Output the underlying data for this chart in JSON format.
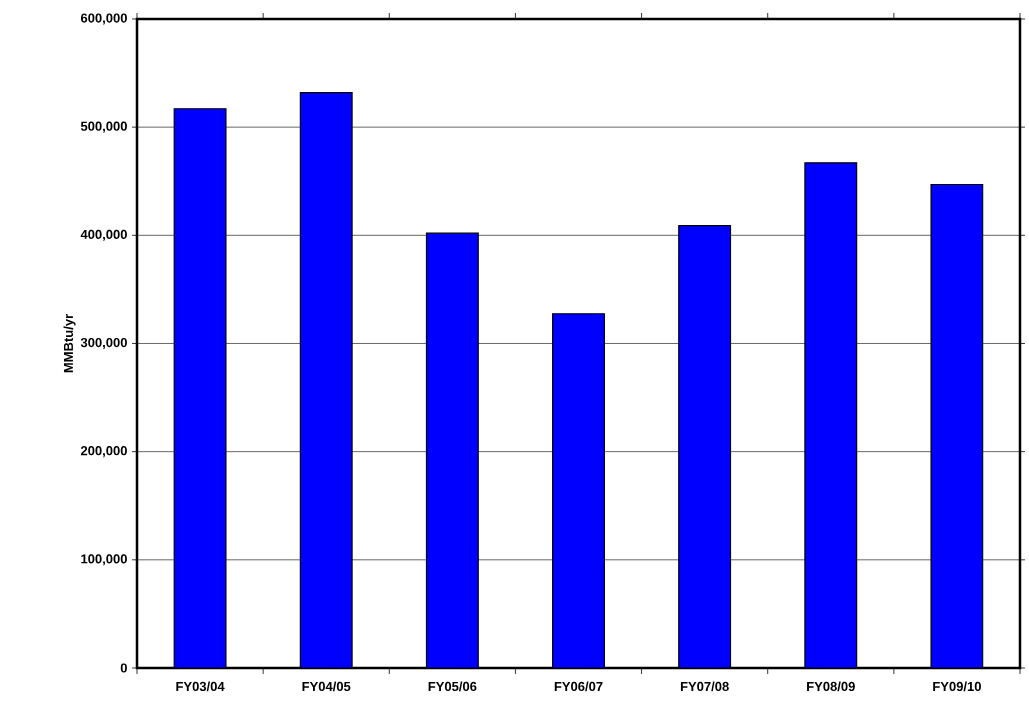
{
  "chart_data": {
    "type": "bar",
    "ylabel": "MMBtu/yr",
    "categories": [
      "FY03/04",
      "FY04/05",
      "FY05/06",
      "FY06/07",
      "FY07/08",
      "FY08/09",
      "FY09/10"
    ],
    "values": [
      517000,
      532000,
      402000,
      327500,
      409000,
      467000,
      447000
    ],
    "color": "#0000ff",
    "ylim": [
      0,
      600000
    ],
    "yticks": [
      0,
      {
        "value": 100000,
        "label": "100,000"
      },
      {
        "value": 200000,
        "label": "200,000"
      },
      {
        "value": 300000,
        "label": "300,000"
      },
      {
        "value": 400000,
        "label": "400,000"
      },
      {
        "value": 500000,
        "label": "500,000"
      },
      {
        "value": 600000,
        "label": "600,000"
      }
    ],
    "grid": "y"
  }
}
